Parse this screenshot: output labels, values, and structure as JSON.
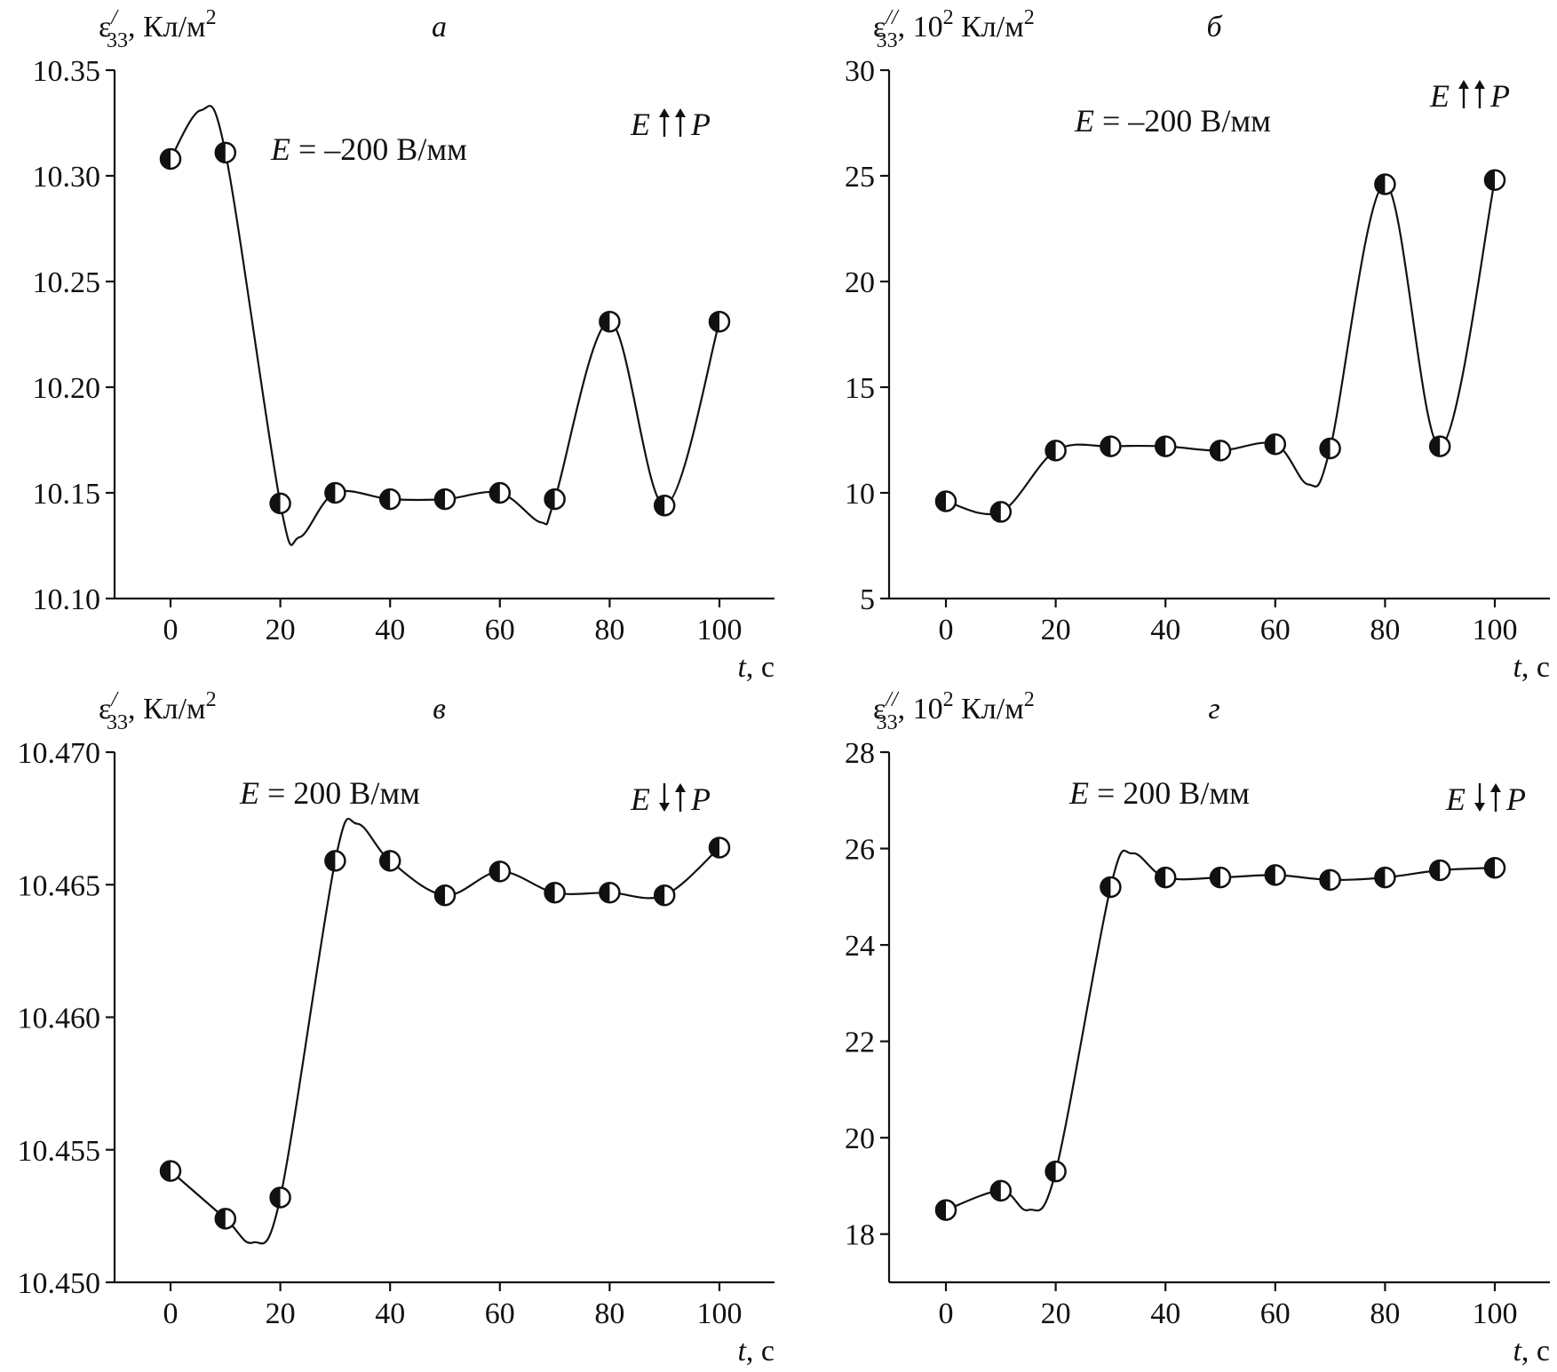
{
  "chart_data": [
    {
      "type": "scatter",
      "panel_label": "а",
      "ylabel_symbol": "ε",
      "ylabel_sub": "33",
      "ylabel_sup": "/",
      "ylabel_unit": ", Кл/м",
      "ylabel_unit_sup": "2",
      "xlabel_var": "t",
      "xlabel_unit": ", с",
      "annotation_E": "E",
      "annotation_value": " = –200 В/мм",
      "polarity_E": "E",
      "polarity_P": "P",
      "polarity": "up-up",
      "x_ticks": [
        "0",
        "20",
        "40",
        "60",
        "80",
        "100"
      ],
      "y_ticks": [
        "10.10",
        "10.15",
        "10.20",
        "10.25",
        "10.30",
        "10.35"
      ],
      "xlim": [
        -10,
        110
      ],
      "ylim": [
        10.1,
        10.35
      ],
      "marker": "half-filled circle",
      "x": [
        0,
        10,
        20,
        30,
        40,
        50,
        60,
        70,
        80,
        90,
        100
      ],
      "y": [
        10.308,
        10.311,
        10.145,
        10.15,
        10.147,
        10.147,
        10.15,
        10.147,
        10.231,
        10.144,
        10.231
      ],
      "curve_extrema": [
        [
          5.5,
          10.331
        ],
        [
          23.5,
          10.129
        ],
        [
          67.5,
          10.136
        ]
      ]
    },
    {
      "type": "scatter",
      "panel_label": "б",
      "ylabel_symbol": "ε",
      "ylabel_sub": "33",
      "ylabel_sup": "//",
      "ylabel_unit": ", 10",
      "ylabel_unit_sup": "2",
      "ylabel_unit2": " Кл/м",
      "ylabel_unit2_sup": "2",
      "xlabel_var": "t",
      "xlabel_unit": ", с",
      "annotation_E": "E",
      "annotation_value": " = –200 В/мм",
      "polarity_E": "E",
      "polarity_P": "P",
      "polarity": "up-up",
      "x_ticks": [
        "0",
        "20",
        "40",
        "60",
        "80",
        "100"
      ],
      "y_ticks": [
        "5",
        "10",
        "15",
        "20",
        "25",
        "30"
      ],
      "xlim": [
        -10,
        110
      ],
      "ylim": [
        5,
        30
      ],
      "marker": "half-filled circle",
      "x": [
        0,
        10,
        20,
        30,
        40,
        50,
        60,
        70,
        80,
        90,
        100
      ],
      "y": [
        9.6,
        9.1,
        12.0,
        12.2,
        12.2,
        12.0,
        12.3,
        12.1,
        24.6,
        12.2,
        24.8
      ],
      "curve_extrema": [
        [
          66,
          10.4
        ]
      ]
    },
    {
      "type": "scatter",
      "panel_label": "в",
      "ylabel_symbol": "ε",
      "ylabel_sub": "33",
      "ylabel_sup": "/",
      "ylabel_unit": ", Кл/м",
      "ylabel_unit_sup": "2",
      "xlabel_var": "t",
      "xlabel_unit": ", с",
      "annotation_E": "E",
      "annotation_value": " = 200 В/мм",
      "polarity_E": "E",
      "polarity_P": "P",
      "polarity": "down-up",
      "x_ticks": [
        "0",
        "20",
        "40",
        "60",
        "80",
        "100"
      ],
      "y_ticks": [
        "10.450",
        "10.455",
        "10.460",
        "10.465",
        "10.470"
      ],
      "xlim": [
        -10,
        110
      ],
      "ylim": [
        10.45,
        10.47
      ],
      "marker": "half-filled circle",
      "x": [
        0,
        10,
        20,
        30,
        40,
        50,
        60,
        70,
        80,
        90,
        100
      ],
      "y": [
        10.4542,
        10.4524,
        10.4532,
        10.4659,
        10.4659,
        10.4646,
        10.4655,
        10.4647,
        10.4647,
        10.4646,
        10.4664
      ],
      "curve_extrema": [
        [
          15,
          10.4515
        ],
        [
          34,
          10.4673
        ]
      ]
    },
    {
      "type": "scatter",
      "panel_label": "г",
      "ylabel_symbol": "ε",
      "ylabel_sub": "33",
      "ylabel_sup": "//",
      "ylabel_unit": ", 10",
      "ylabel_unit_sup": "2",
      "ylabel_unit2": " Кл/м",
      "ylabel_unit2_sup": "2",
      "xlabel_var": "t",
      "xlabel_unit": ", с",
      "annotation_E": "E",
      "annotation_value": " = 200 В/мм",
      "polarity_E": "E",
      "polarity_P": "P",
      "polarity": "down-up",
      "x_ticks": [
        "0",
        "20",
        "40",
        "60",
        "80",
        "100"
      ],
      "y_ticks": [
        "18",
        "20",
        "22",
        "24",
        "26",
        "28"
      ],
      "xlim": [
        -10,
        110
      ],
      "ylim": [
        17,
        28
      ],
      "marker": "half-filled circle",
      "x": [
        0,
        10,
        20,
        30,
        40,
        50,
        60,
        70,
        80,
        90,
        100
      ],
      "y": [
        18.5,
        18.9,
        19.3,
        25.2,
        25.4,
        25.4,
        25.45,
        25.35,
        25.4,
        25.55,
        25.6
      ],
      "curve_extrema": [
        [
          15,
          18.5
        ],
        [
          34,
          25.9
        ]
      ]
    }
  ]
}
